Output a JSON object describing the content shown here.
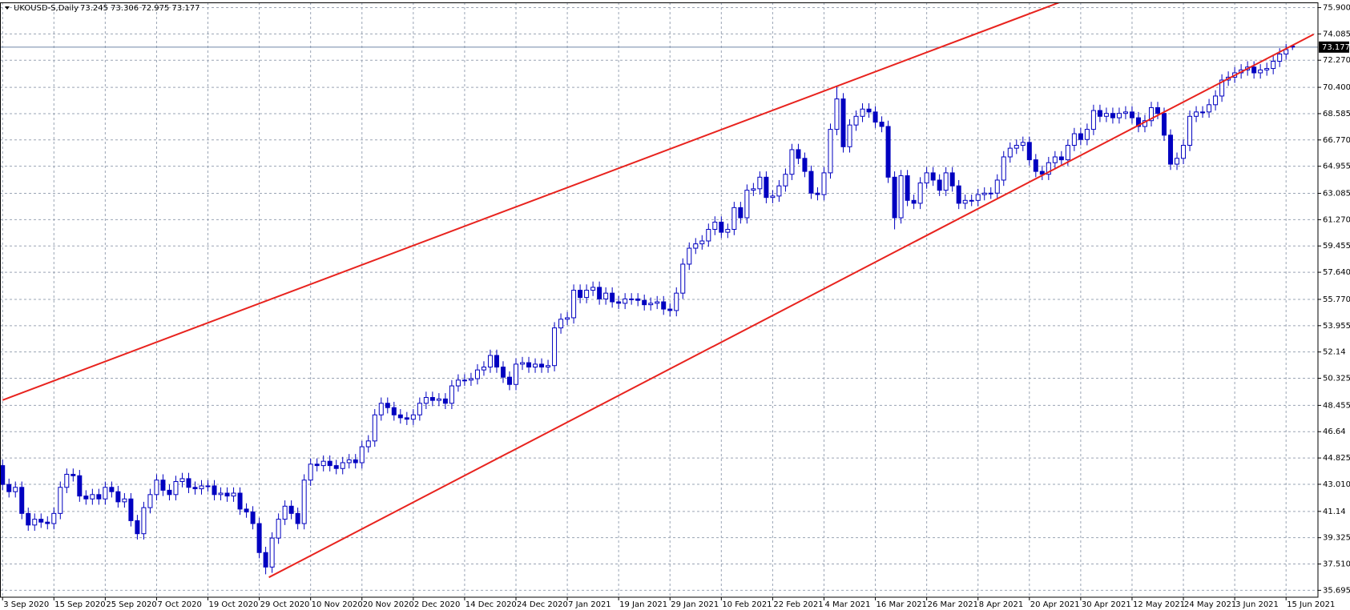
{
  "chart_data": {
    "type": "candlestick",
    "title": "UKOUSD-S,Daily",
    "title_values": "73.245 73.306 72.975 73.177",
    "current_price": 73.177,
    "bull_color": "#ffffff",
    "bear_color": "#0000c0",
    "line_color": "#0000c0",
    "trend_color": "#e8231e",
    "grid": true,
    "ylim": [
      35.22,
      76.26
    ],
    "yticks": [
      35.695,
      {
        "value": 37.51,
        "label": "37.510"
      },
      39.325,
      41.14,
      {
        "value": 43.01,
        "label": "43.010"
      },
      44.825,
      46.64,
      48.455,
      50.325,
      52.14,
      53.955,
      {
        "value": 55.77,
        "label": "55.770"
      },
      {
        "value": 57.64,
        "label": "57.640"
      },
      59.455,
      {
        "value": 61.27,
        "label": "61.270"
      },
      63.085,
      64.955,
      {
        "value": 66.77,
        "label": "66.770"
      },
      68.585,
      {
        "value": 70.4,
        "label": "70.400"
      },
      {
        "value": 72.27,
        "label": "72.270"
      },
      74.085,
      {
        "value": 75.9,
        "label": "75.900"
      }
    ],
    "categories": [
      "3 Sep 2020",
      null,
      null,
      null,
      null,
      null,
      null,
      null,
      "15 Sep 2020",
      null,
      null,
      null,
      null,
      null,
      null,
      null,
      "25 Sep 2020",
      null,
      null,
      null,
      null,
      null,
      null,
      null,
      "7 Oct 2020",
      null,
      null,
      null,
      null,
      null,
      null,
      null,
      "19 Oct 2020",
      null,
      null,
      null,
      null,
      null,
      null,
      null,
      "29 Oct 2020",
      null,
      null,
      null,
      null,
      null,
      null,
      null,
      "10 Nov 2020",
      null,
      null,
      null,
      null,
      null,
      null,
      null,
      "20 Nov 2020",
      null,
      null,
      null,
      null,
      null,
      null,
      null,
      "2 Dec 2020",
      null,
      null,
      null,
      null,
      null,
      null,
      null,
      "14 Dec 2020",
      null,
      null,
      null,
      null,
      null,
      null,
      null,
      "24 Dec 2020",
      null,
      null,
      null,
      null,
      null,
      null,
      null,
      "7 Jan 2021",
      null,
      null,
      null,
      null,
      null,
      null,
      null,
      "19 Jan 2021",
      null,
      null,
      null,
      null,
      null,
      null,
      null,
      "29 Jan 2021",
      null,
      null,
      null,
      null,
      null,
      null,
      null,
      "10 Feb 2021",
      null,
      null,
      null,
      null,
      null,
      null,
      null,
      "22 Feb 2021",
      null,
      null,
      null,
      null,
      null,
      null,
      null,
      "4 Mar 2021",
      null,
      null,
      null,
      null,
      null,
      null,
      null,
      "16 Mar 2021",
      null,
      null,
      null,
      null,
      null,
      null,
      null,
      "26 Mar 2021",
      null,
      null,
      null,
      null,
      null,
      null,
      null,
      "8 Apr 2021",
      null,
      null,
      null,
      null,
      null,
      null,
      null,
      "20 Apr 2021",
      null,
      null,
      null,
      null,
      null,
      null,
      null,
      "30 Apr 2021",
      null,
      null,
      null,
      null,
      null,
      null,
      null,
      "12 May 2021",
      null,
      null,
      null,
      null,
      null,
      null,
      null,
      "24 May 2021",
      null,
      null,
      null,
      null,
      null,
      null,
      null,
      "3 Jun 2021",
      null,
      null,
      null,
      null,
      null,
      null,
      null,
      "15 Jun 2021",
      null
    ],
    "open": [
      44.3,
      43.0,
      42.5,
      42.8,
      41.0,
      40.2,
      40.6,
      40.4,
      40.3,
      41.0,
      42.8,
      43.7,
      43.6,
      42.2,
      42.0,
      42.3,
      42.0,
      42.8,
      42.5,
      41.8,
      42.0,
      40.5,
      39.6,
      41.4,
      42.3,
      43.3,
      42.6,
      42.3,
      43.2,
      43.4,
      42.8,
      42.7,
      42.9,
      42.9,
      42.3,
      42.4,
      42.2,
      42.4,
      41.3,
      41.1,
      40.3,
      38.3,
      37.3,
      39.3,
      40.6,
      41.5,
      41.0,
      40.3,
      43.3,
      44.4,
      44.3,
      44.6,
      44.3,
      44.1,
      44.5,
      44.7,
      44.5,
      45.6,
      46.0,
      47.8,
      48.6,
      48.3,
      47.8,
      47.6,
      47.5,
      47.8,
      48.6,
      49.0,
      48.8,
      48.9,
      48.6,
      49.8,
      50.2,
      50.2,
      50.3,
      50.9,
      51.1,
      51.9,
      51.1,
      50.4,
      49.9,
      51.3,
      51.4,
      51.1,
      51.3,
      51.1,
      51.2,
      53.8,
      54.4,
      54.5,
      56.4,
      55.9,
      56.4,
      56.6,
      55.8,
      56.2,
      55.6,
      55.5,
      55.8,
      55.8,
      55.7,
      55.4,
      55.5,
      55.6,
      55.1,
      55.0,
      56.2,
      58.2,
      59.3,
      59.6,
      59.8,
      60.6,
      61.1,
      60.4,
      60.6,
      62.1,
      61.4,
      63.3,
      63.4,
      64.2,
      62.8,
      62.9,
      63.6,
      64.4,
      66.1,
      65.5,
      64.6,
      63.1,
      63.0,
      64.5,
      67.5,
      69.6,
      66.3,
      67.8,
      68.4,
      68.9,
      68.7,
      68.0,
      67.7,
      64.2,
      61.4,
      64.3,
      62.6,
      62.4,
      63.8,
      64.5,
      64.0,
      63.3,
      64.5,
      63.6,
      62.4,
      62.6,
      62.6,
      63.0,
      63.1,
      63.1,
      64.0,
      65.6,
      66.2,
      66.4,
      66.6,
      65.4,
      64.6,
      64.4,
      65.2,
      65.6,
      65.4,
      66.4,
      67.2,
      66.8,
      67.5,
      68.8,
      68.4,
      68.6,
      68.3,
      68.6,
      68.7,
      68.3,
      67.7,
      68.1,
      69.0,
      68.6,
      67.1,
      65.1,
      65.5,
      66.4,
      68.4,
      68.7,
      68.7,
      69.2,
      69.8,
      70.9,
      71.1,
      71.4,
      71.6,
      71.8,
      71.4,
      71.6,
      71.7,
      72.2,
      72.7,
      73.245
    ],
    "high": [
      44.7,
      43.4,
      43.2,
      43.2,
      41.4,
      41.0,
      41.0,
      40.8,
      41.4,
      43.2,
      44.1,
      44.1,
      44.0,
      42.6,
      42.7,
      42.7,
      43.2,
      43.2,
      42.9,
      42.4,
      42.4,
      40.9,
      41.8,
      42.7,
      43.7,
      43.7,
      43.0,
      43.6,
      43.8,
      43.8,
      43.2,
      43.3,
      43.3,
      43.3,
      42.8,
      42.8,
      42.8,
      42.8,
      41.7,
      41.5,
      40.7,
      38.7,
      39.7,
      41.0,
      41.9,
      41.9,
      41.4,
      43.7,
      44.8,
      44.8,
      45.0,
      45.0,
      44.7,
      44.9,
      45.1,
      45.1,
      46.0,
      46.4,
      48.2,
      49.0,
      49.0,
      48.7,
      48.2,
      48.0,
      48.2,
      49.0,
      49.4,
      49.4,
      49.3,
      49.3,
      50.2,
      50.6,
      50.6,
      50.7,
      51.3,
      51.5,
      52.3,
      52.3,
      51.5,
      50.8,
      51.7,
      51.8,
      51.8,
      51.7,
      51.7,
      51.6,
      54.2,
      54.8,
      54.9,
      56.8,
      56.8,
      56.8,
      57.0,
      57.0,
      56.6,
      56.6,
      56.0,
      56.2,
      56.2,
      56.2,
      56.1,
      55.9,
      56.0,
      56.0,
      55.5,
      56.6,
      58.6,
      59.7,
      60.0,
      60.2,
      61.0,
      61.5,
      61.5,
      61.0,
      62.5,
      62.5,
      63.7,
      63.8,
      64.6,
      64.6,
      63.3,
      64.0,
      64.8,
      66.5,
      66.5,
      65.9,
      65.0,
      63.5,
      64.9,
      67.9,
      70.5,
      70.0,
      68.2,
      68.8,
      69.3,
      69.3,
      69.1,
      68.4,
      68.1,
      64.6,
      64.7,
      64.7,
      63.0,
      64.2,
      64.9,
      64.9,
      64.4,
      64.9,
      64.9,
      64.0,
      63.0,
      63.0,
      63.4,
      63.5,
      63.5,
      64.4,
      66.0,
      66.6,
      66.8,
      67.0,
      67.0,
      65.8,
      65.0,
      65.6,
      66.0,
      66.0,
      66.8,
      67.6,
      67.6,
      67.9,
      69.2,
      69.2,
      69.0,
      69.0,
      69.0,
      69.1,
      69.1,
      68.7,
      68.5,
      69.4,
      69.4,
      69.0,
      67.5,
      65.9,
      66.8,
      68.8,
      69.1,
      69.1,
      69.6,
      70.2,
      71.3,
      71.5,
      71.8,
      72.0,
      72.2,
      72.2,
      72.0,
      72.1,
      72.6,
      73.1,
      73.4,
      73.306
    ],
    "low": [
      42.6,
      42.1,
      42.1,
      40.6,
      39.8,
      39.8,
      40.0,
      39.9,
      39.9,
      40.6,
      42.4,
      43.2,
      41.8,
      41.6,
      41.6,
      41.6,
      41.6,
      42.1,
      41.4,
      41.4,
      40.1,
      39.2,
      39.2,
      41.0,
      41.9,
      42.2,
      41.9,
      41.9,
      42.8,
      42.4,
      42.3,
      42.3,
      42.5,
      41.9,
      41.9,
      41.8,
      41.8,
      40.9,
      40.7,
      39.9,
      37.9,
      36.8,
      36.9,
      38.9,
      40.2,
      40.6,
      39.9,
      39.9,
      42.9,
      43.9,
      43.9,
      43.9,
      43.7,
      43.7,
      44.1,
      44.1,
      44.1,
      45.2,
      45.6,
      47.4,
      47.9,
      47.4,
      47.2,
      47.1,
      47.1,
      47.4,
      48.2,
      48.4,
      48.4,
      48.2,
      48.2,
      49.4,
      49.8,
      49.8,
      49.9,
      50.5,
      50.7,
      50.7,
      50.0,
      49.5,
      49.5,
      50.9,
      50.7,
      50.7,
      50.7,
      50.7,
      50.8,
      53.4,
      54.0,
      54.1,
      55.5,
      55.5,
      56.0,
      55.4,
      55.4,
      55.2,
      55.1,
      55.1,
      55.4,
      55.3,
      55.0,
      55.0,
      55.1,
      54.7,
      54.6,
      54.6,
      55.8,
      57.8,
      58.9,
      59.2,
      59.4,
      60.2,
      60.0,
      60.0,
      60.2,
      61.0,
      61.0,
      62.9,
      63.0,
      62.4,
      62.4,
      62.5,
      63.2,
      64.0,
      65.1,
      64.2,
      62.7,
      62.6,
      62.6,
      64.1,
      67.1,
      65.9,
      65.9,
      67.4,
      68.0,
      68.3,
      67.6,
      67.3,
      63.8,
      60.6,
      61.0,
      62.2,
      62.0,
      62.0,
      63.4,
      63.6,
      62.9,
      62.9,
      63.2,
      62.0,
      62.0,
      62.2,
      62.2,
      62.6,
      62.7,
      62.7,
      63.6,
      65.2,
      65.8,
      66.0,
      65.0,
      64.2,
      64.0,
      64.0,
      64.8,
      65.0,
      65.0,
      66.0,
      66.4,
      66.4,
      67.1,
      68.0,
      68.0,
      67.9,
      67.9,
      68.2,
      67.9,
      67.3,
      67.3,
      67.7,
      68.2,
      66.7,
      64.7,
      64.7,
      65.1,
      66.0,
      68.0,
      68.3,
      68.3,
      68.8,
      69.4,
      70.5,
      70.7,
      71.0,
      71.2,
      71.0,
      71.0,
      71.2,
      71.3,
      71.8,
      72.3,
      72.975
    ],
    "close": [
      43.0,
      42.5,
      42.8,
      41.0,
      40.2,
      40.6,
      40.4,
      40.3,
      41.0,
      42.8,
      43.7,
      43.6,
      42.2,
      42.0,
      42.3,
      42.0,
      42.8,
      42.5,
      41.8,
      42.0,
      40.5,
      39.6,
      41.4,
      42.3,
      43.3,
      42.6,
      42.3,
      43.2,
      43.4,
      42.8,
      42.7,
      42.9,
      42.9,
      42.3,
      42.4,
      42.2,
      42.4,
      41.3,
      41.1,
      40.3,
      38.3,
      37.3,
      39.3,
      40.6,
      41.5,
      41.0,
      40.3,
      43.3,
      44.4,
      44.3,
      44.6,
      44.3,
      44.1,
      44.5,
      44.7,
      44.5,
      45.6,
      46.0,
      47.8,
      48.6,
      48.3,
      47.8,
      47.6,
      47.5,
      47.8,
      48.6,
      49.0,
      48.8,
      48.9,
      48.6,
      49.8,
      50.2,
      50.2,
      50.3,
      50.9,
      51.1,
      51.9,
      51.1,
      50.4,
      49.9,
      51.3,
      51.4,
      51.1,
      51.3,
      51.1,
      51.2,
      53.8,
      54.4,
      54.5,
      56.4,
      55.9,
      56.4,
      56.6,
      55.8,
      56.2,
      55.6,
      55.5,
      55.8,
      55.8,
      55.7,
      55.4,
      55.5,
      55.6,
      55.1,
      55.0,
      56.2,
      58.2,
      59.3,
      59.6,
      59.8,
      60.6,
      61.1,
      60.4,
      60.6,
      62.1,
      61.4,
      63.3,
      63.4,
      64.2,
      62.8,
      62.9,
      63.6,
      64.4,
      66.1,
      65.5,
      64.6,
      63.1,
      63.0,
      64.5,
      67.5,
      69.6,
      66.3,
      67.8,
      68.4,
      68.9,
      68.7,
      68.0,
      67.7,
      64.2,
      61.4,
      64.3,
      62.6,
      62.4,
      63.8,
      64.5,
      64.0,
      63.3,
      64.5,
      63.6,
      62.4,
      62.6,
      62.6,
      63.0,
      63.1,
      63.1,
      64.0,
      65.6,
      66.2,
      66.4,
      66.6,
      65.4,
      64.6,
      64.4,
      65.2,
      65.6,
      65.4,
      66.4,
      67.2,
      66.8,
      67.5,
      68.8,
      68.4,
      68.6,
      68.3,
      68.6,
      68.7,
      68.3,
      67.7,
      68.1,
      69.0,
      68.6,
      67.1,
      65.1,
      65.5,
      66.4,
      68.4,
      68.7,
      68.7,
      69.2,
      69.8,
      70.9,
      71.1,
      71.4,
      71.6,
      71.8,
      71.4,
      71.6,
      71.7,
      72.2,
      72.7,
      73.0,
      73.177
    ],
    "trendlines": [
      {
        "x": [
          0,
          164.7
        ],
        "y": [
          48.82,
          76.26
        ]
      },
      {
        "x": [
          41.5,
          204.3
        ],
        "y": [
          36.59,
          74.06
        ]
      }
    ]
  }
}
